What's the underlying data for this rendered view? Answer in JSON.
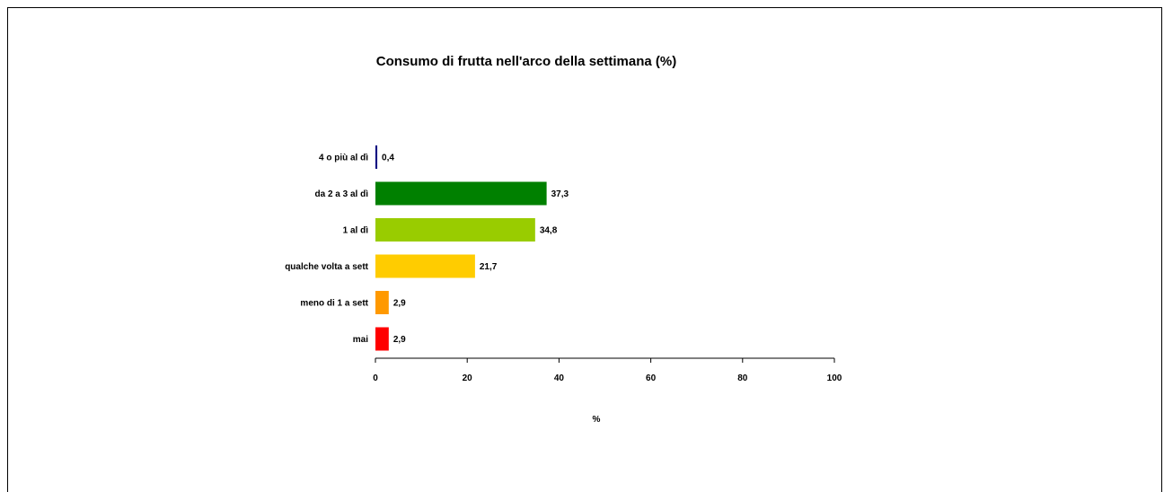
{
  "chart_data": {
    "type": "bar",
    "orientation": "horizontal",
    "title": "Consumo di frutta nell'arco della settimana  (%)",
    "xlabel": "%",
    "ylabel": "",
    "xlim": [
      0,
      100
    ],
    "xticks": [
      "0",
      "20",
      "40",
      "60",
      "80",
      "100"
    ],
    "grid": false,
    "categories": [
      "4 o più al dì",
      "da 2 a 3 al dì",
      "1 al dì",
      "qualche volta a sett",
      "meno di 1 a sett",
      "mai"
    ],
    "values": [
      0.4,
      37.3,
      34.8,
      21.7,
      2.9,
      2.9
    ],
    "value_labels": [
      "0,4",
      "37,3",
      "34,8",
      "21,7",
      "2,9",
      "2,9"
    ],
    "colors": [
      "#000080",
      "#008000",
      "#99CC00",
      "#FFCC00",
      "#FF9900",
      "#FF0000"
    ]
  }
}
